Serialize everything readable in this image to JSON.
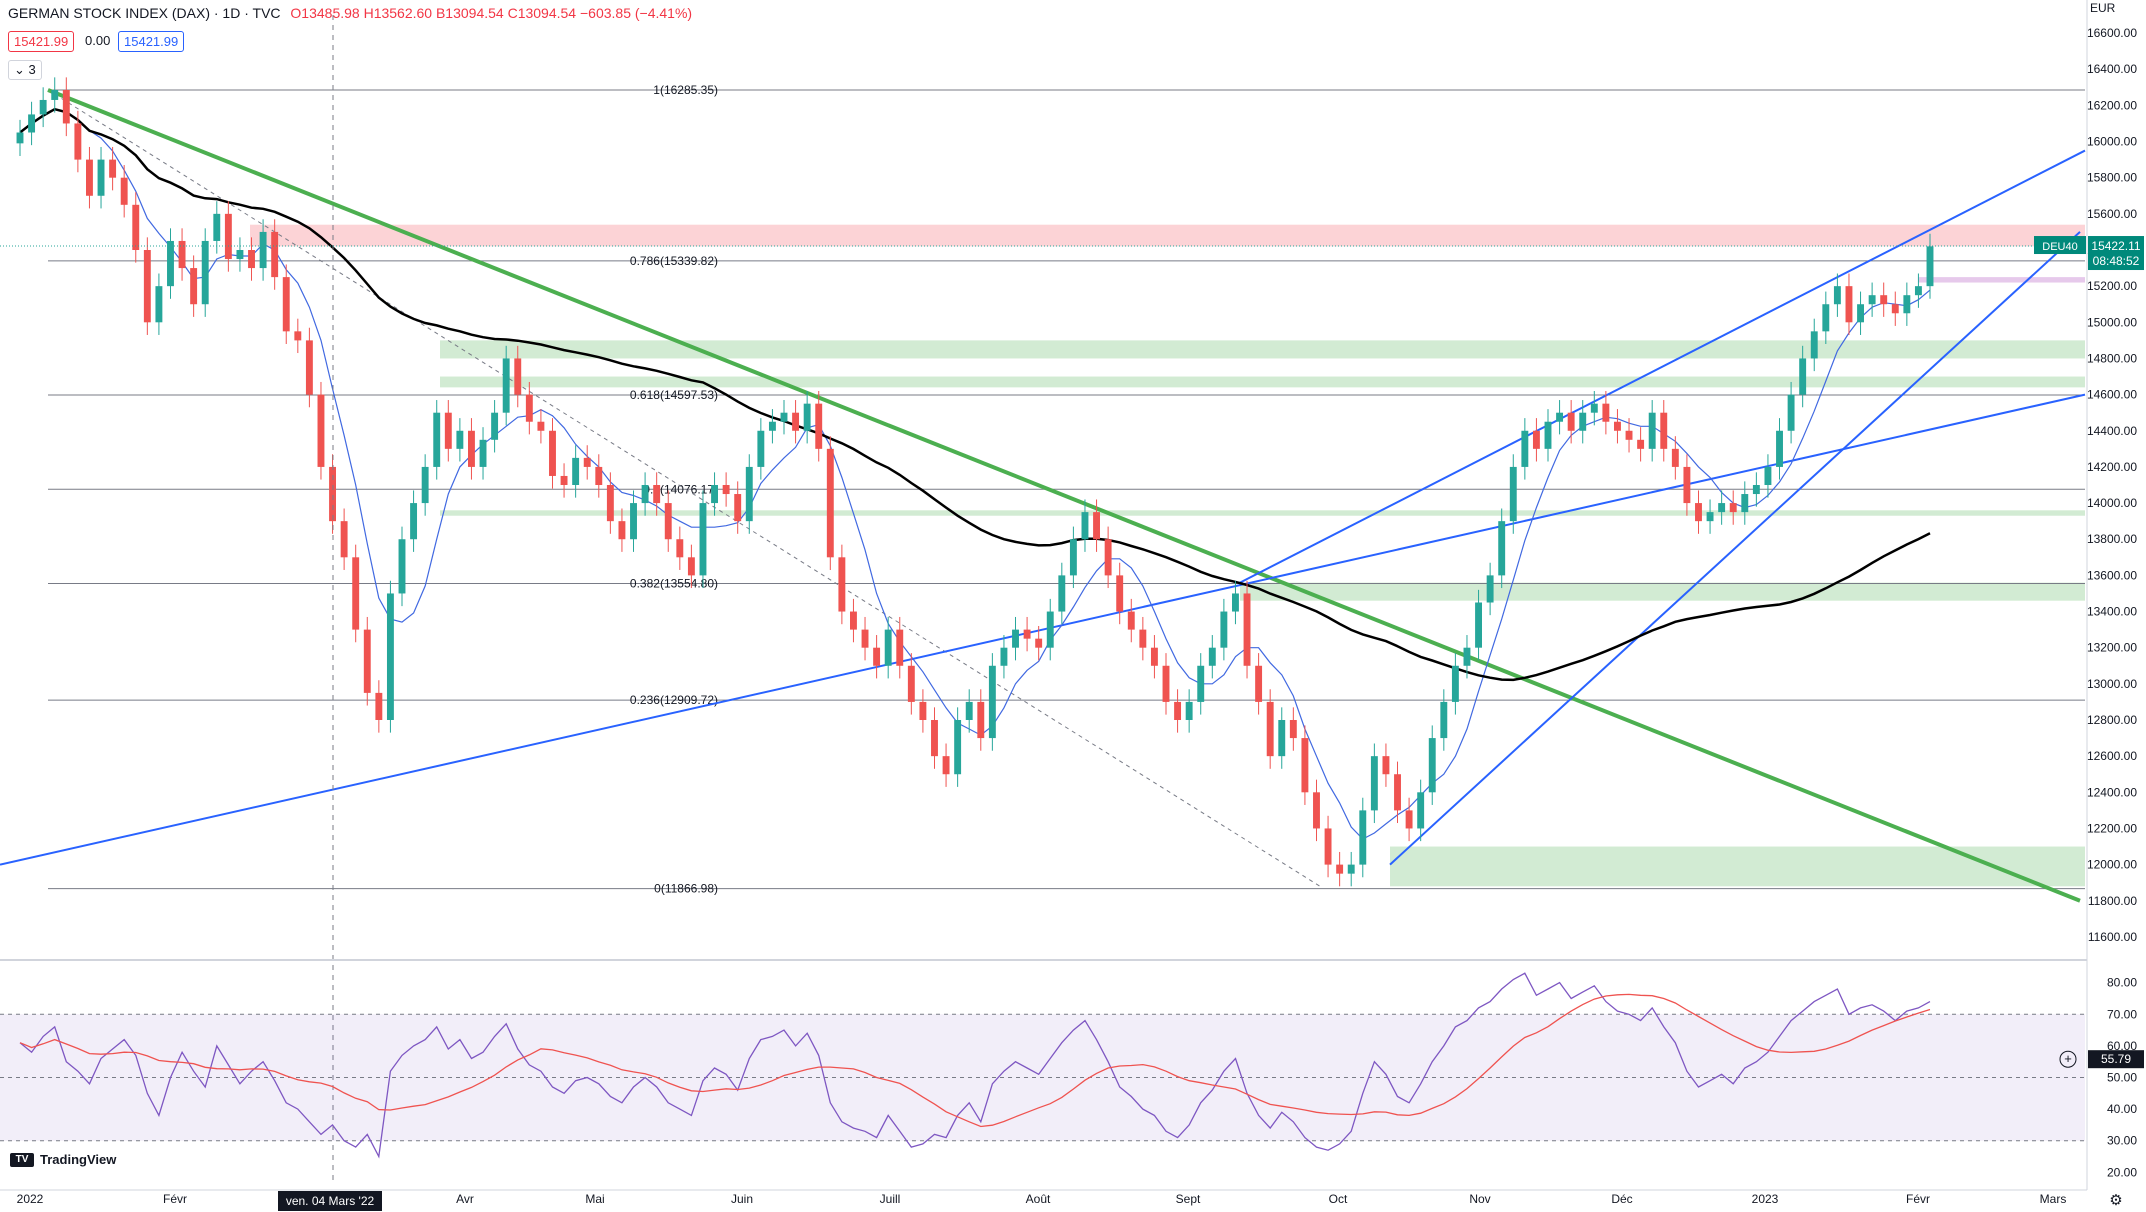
{
  "header": {
    "title": "GERMAN STOCK INDEX (DAX) · 1D · TVC",
    "ohlc": "O13485.98 H13562.60 B13094.54 C13094.54 −603.85 (−4.41%)",
    "price_red": "15421.99",
    "spread": "0.00",
    "price_blue": "15421.99",
    "indicator_count": "3",
    "currency": "EUR"
  },
  "branding": {
    "logo_text": "TradingView"
  },
  "colors": {
    "up": "#26a69a",
    "down": "#ef5350",
    "trend_green": "#4caf50",
    "channel_blue": "#2962ff",
    "ma_black": "#000000",
    "ma_blue": "#4169e1",
    "rsi_line": "#7e57c2",
    "rsi_ma": "#ef5350"
  },
  "chart_data": {
    "type": "candlestick",
    "symbol_label": "DEU40",
    "last_price": "15422.11",
    "countdown": "08:48:52",
    "y_ticks": [
      "16600.00",
      "16400.00",
      "16200.00",
      "16000.00",
      "15800.00",
      "15600.00",
      "15400.00",
      "15200.00",
      "15000.00",
      "14800.00",
      "14600.00",
      "14400.00",
      "14200.00",
      "14000.00",
      "13800.00",
      "13600.00",
      "13400.00",
      "13200.00",
      "13000.00",
      "12800.00",
      "12600.00",
      "12400.00",
      "12200.00",
      "12000.00",
      "11800.00",
      "11600.00"
    ],
    "y_range": [
      11500,
      16700
    ],
    "x_labels": [
      "2022",
      "Févr",
      "Mars",
      "Avr",
      "Mai",
      "Juin",
      "Juill",
      "Août",
      "Sept",
      "Oct",
      "Nov",
      "Déc",
      "2023",
      "Févr",
      "Mars"
    ],
    "crosshair_date": "ven. 04 Mars '22",
    "fib_levels": [
      {
        "label": "1(16285.35)",
        "value": 16285.35
      },
      {
        "label": "0.786(15339.82)",
        "value": 15339.82
      },
      {
        "label": "0.618(14597.53)",
        "value": 14597.53
      },
      {
        "label": "0.5(14076.17)",
        "value": 14076.17
      },
      {
        "label": "0.382(13554.80)",
        "value": 13554.8
      },
      {
        "label": "0.236(12909.72)",
        "value": 12909.72
      },
      {
        "label": "0(11866.98)",
        "value": 11866.98
      }
    ],
    "zones": [
      {
        "type": "resistance",
        "low": 15420,
        "high": 15540
      },
      {
        "type": "support",
        "low": 14800,
        "high": 14900
      },
      {
        "type": "support",
        "low": 14640,
        "high": 14700
      },
      {
        "type": "support",
        "low": 13930,
        "high": 13960
      },
      {
        "type": "support",
        "low": 13460,
        "high": 13560
      },
      {
        "type": "support",
        "low": 11880,
        "high": 12100
      },
      {
        "type": "pending",
        "low": 15220,
        "high": 15250
      }
    ],
    "close_series": [
      16050,
      16150,
      16230,
      16285,
      16100,
      15900,
      15700,
      15900,
      15800,
      15650,
      15400,
      15000,
      15200,
      15450,
      15300,
      15100,
      15450,
      15600,
      15350,
      15400,
      15300,
      15500,
      15250,
      14950,
      14900,
      14600,
      14200,
      13900,
      13700,
      13300,
      12950,
      12800,
      13500,
      13800,
      14000,
      14200,
      14500,
      14300,
      14400,
      14200,
      14350,
      14500,
      14800,
      14600,
      14450,
      14400,
      14150,
      14100,
      14250,
      14200,
      14100,
      13900,
      13800,
      14000,
      14100,
      14000,
      13800,
      13700,
      13600,
      14000,
      14100,
      14050,
      13900,
      14200,
      14400,
      14450,
      14500,
      14400,
      14550,
      14300,
      13700,
      13400,
      13300,
      13200,
      13100,
      13300,
      13100,
      12900,
      12800,
      12600,
      12500,
      12800,
      12900,
      12700,
      13100,
      13200,
      13300,
      13250,
      13200,
      13400,
      13600,
      13800,
      13950,
      13800,
      13600,
      13400,
      13300,
      13200,
      13100,
      12900,
      12800,
      12900,
      13100,
      13200,
      13400,
      13500,
      13100,
      12900,
      12600,
      12800,
      12700,
      12400,
      12200,
      12000,
      11950,
      12000,
      12300,
      12600,
      12500,
      12300,
      12200,
      12400,
      12700,
      12900,
      13100,
      13200,
      13450,
      13600,
      13900,
      14200,
      14400,
      14300,
      14450,
      14500,
      14400,
      14500,
      14550,
      14450,
      14400,
      14350,
      14300,
      14500,
      14300,
      14200,
      14000,
      13900,
      13950,
      14000,
      13950,
      14050,
      14100,
      14200,
      14400,
      14600,
      14800,
      14950,
      15100,
      15200,
      15000,
      15100,
      15150,
      15100,
      15050,
      15150,
      15200,
      15420
    ],
    "rsi": {
      "y_ticks": [
        "80.00",
        "70.00",
        "60.00",
        "50.00",
        "40.00",
        "30.00",
        "20.00"
      ],
      "y_range": [
        16,
        84
      ],
      "current": "55.79",
      "series": [
        61,
        58,
        63,
        66,
        55,
        52,
        48,
        56,
        59,
        62,
        57,
        45,
        38,
        50,
        58,
        52,
        47,
        60,
        54,
        48,
        52,
        55,
        49,
        42,
        40,
        36,
        32,
        35,
        30,
        28,
        32,
        25,
        52,
        57,
        60,
        62,
        66,
        59,
        62,
        56,
        58,
        63,
        67,
        59,
        54,
        52,
        47,
        45,
        49,
        50,
        48,
        44,
        42,
        47,
        50,
        47,
        42,
        40,
        38,
        49,
        53,
        51,
        46,
        56,
        62,
        63,
        65,
        60,
        64,
        57,
        42,
        36,
        34,
        33,
        31,
        38,
        33,
        28,
        29,
        32,
        31,
        38,
        42,
        36,
        48,
        52,
        55,
        53,
        51,
        56,
        61,
        65,
        68,
        62,
        55,
        47,
        44,
        40,
        38,
        33,
        31,
        35,
        42,
        46,
        52,
        56,
        45,
        38,
        34,
        39,
        36,
        31,
        28,
        27,
        29,
        33,
        45,
        55,
        51,
        44,
        42,
        48,
        55,
        60,
        66,
        68,
        72,
        74,
        78,
        81,
        83,
        76,
        78,
        80,
        75,
        77,
        79,
        74,
        71,
        70,
        68,
        72,
        66,
        61,
        52,
        47,
        49,
        51,
        48,
        53,
        55,
        58,
        63,
        68,
        71,
        74,
        76,
        78,
        70,
        72,
        73,
        71,
        68,
        71,
        72,
        74
      ]
    }
  }
}
